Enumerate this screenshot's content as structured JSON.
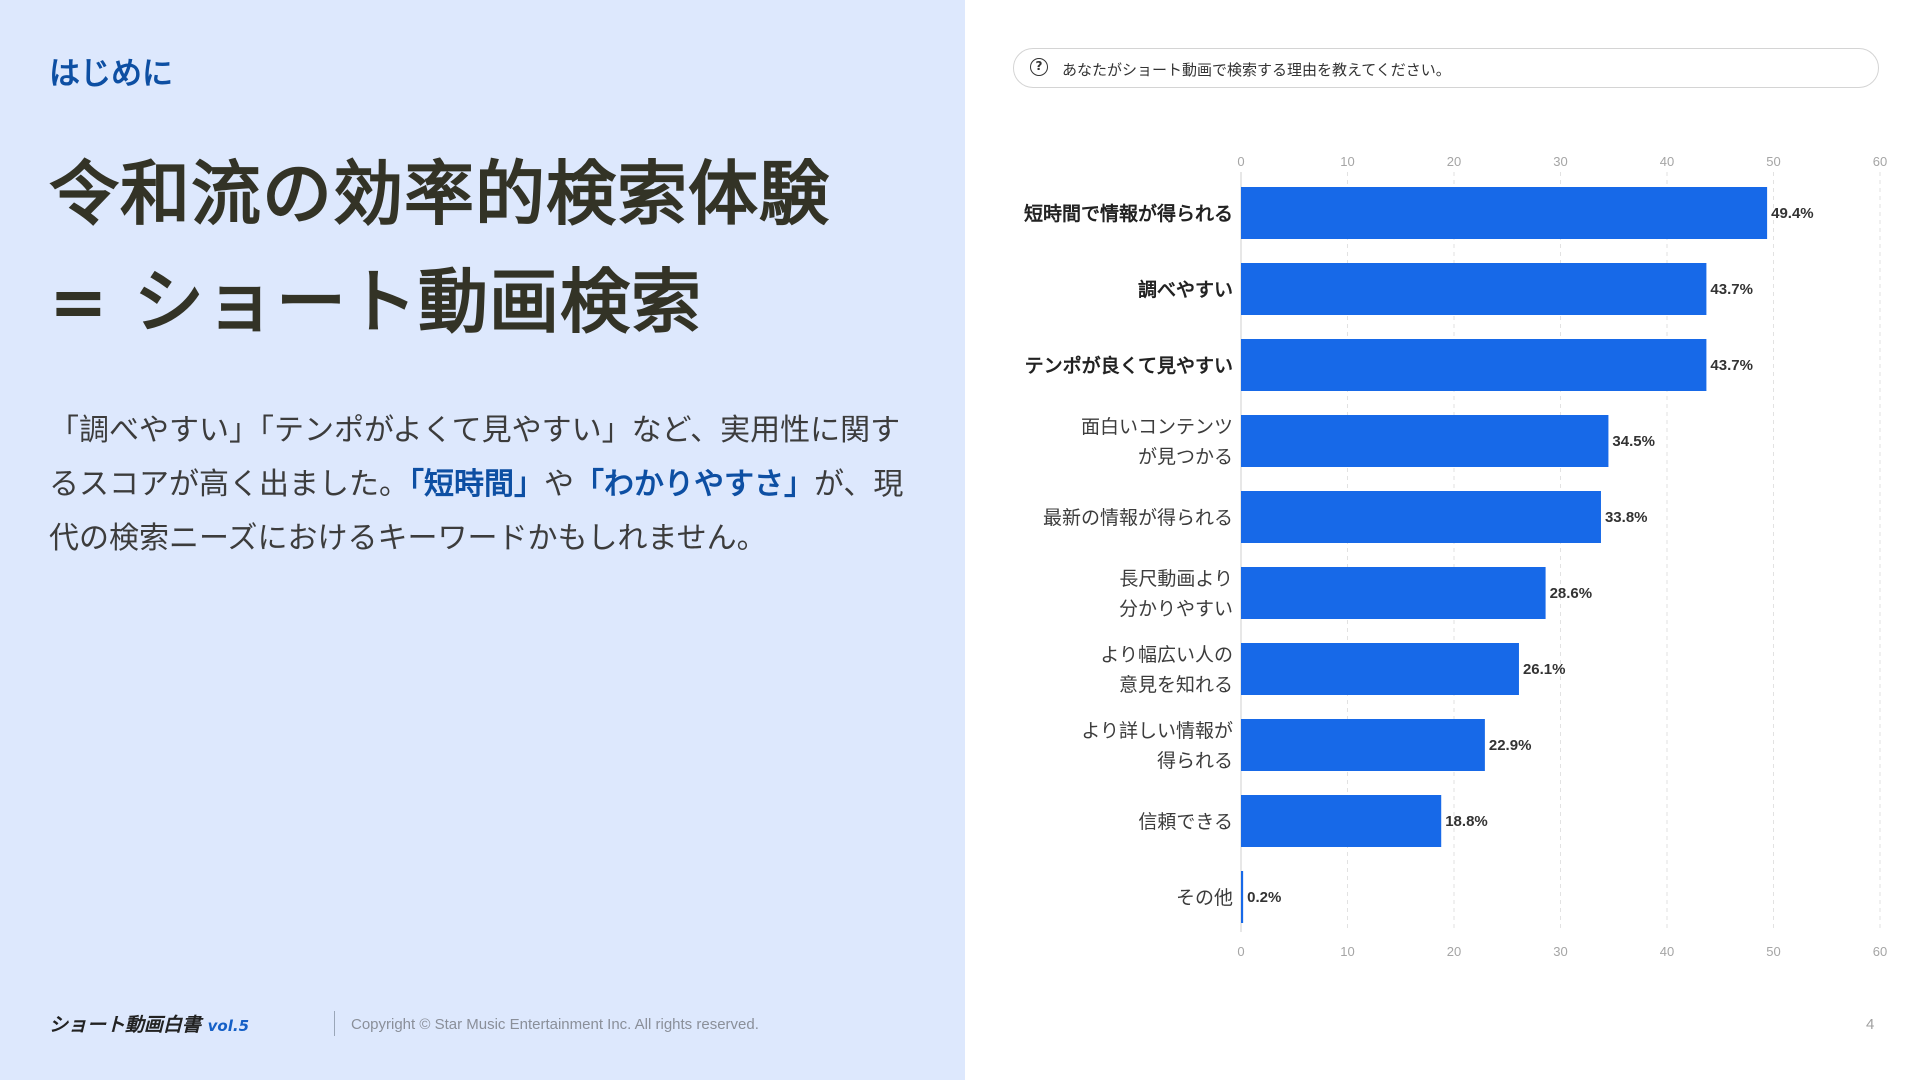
{
  "left": {
    "section_label": "はじめに",
    "headline_line1": "令和流の効率的検索体験",
    "headline_line2": "= ショート動画検索",
    "body": {
      "part1": "「調べやすい」「テンポがよくて見やすい」など、実用性に関するスコアが高く出ました。",
      "highlight1": "「短時間」",
      "part2": "や",
      "highlight2": "「わかりやすさ」",
      "part3": "が、現代の検索ニーズにおけるキーワードかもしれません。"
    },
    "accent_color": "#0d4fa3"
  },
  "footer": {
    "logo_main": "ショート動画白書",
    "logo_vol": "vol.5",
    "copyright": "Copyright © Star Music Entertainment Inc. All rights reserved.",
    "page_number": "4"
  },
  "question": {
    "icon": "question-circle-icon",
    "text": "あなたがショート動画で検索する理由を教えてください。"
  },
  "chart_data": {
    "type": "bar",
    "orientation": "horizontal",
    "bar_color": "#1769e8",
    "xlim": [
      0,
      60
    ],
    "xticks": [
      "0",
      "10",
      "20",
      "30",
      "40",
      "50",
      "60"
    ],
    "grid": true,
    "categories": [
      {
        "lines": [
          "短時間で情報が得られる"
        ],
        "bold": true
      },
      {
        "lines": [
          "調べやすい"
        ],
        "bold": true
      },
      {
        "lines": [
          "テンポが良くて見やすい"
        ],
        "bold": true
      },
      {
        "lines": [
          "面白いコンテンツ",
          "が見つかる"
        ],
        "bold": false
      },
      {
        "lines": [
          "最新の情報が得られる"
        ],
        "bold": false
      },
      {
        "lines": [
          "長尺動画より",
          "分かりやすい"
        ],
        "bold": false
      },
      {
        "lines": [
          "より幅広い人の",
          "意見を知れる"
        ],
        "bold": false
      },
      {
        "lines": [
          "より詳しい情報が",
          "得られる"
        ],
        "bold": false
      },
      {
        "lines": [
          "信頼できる"
        ],
        "bold": false
      },
      {
        "lines": [
          "その他"
        ],
        "bold": false
      }
    ],
    "values": [
      49.4,
      43.7,
      43.7,
      34.5,
      33.8,
      28.6,
      26.1,
      22.9,
      18.8,
      0.2
    ],
    "value_labels": [
      "49.4%",
      "43.7%",
      "43.7%",
      "34.5%",
      "33.8%",
      "28.6%",
      "26.1%",
      "22.9%",
      "18.8%",
      "0.2%"
    ]
  }
}
